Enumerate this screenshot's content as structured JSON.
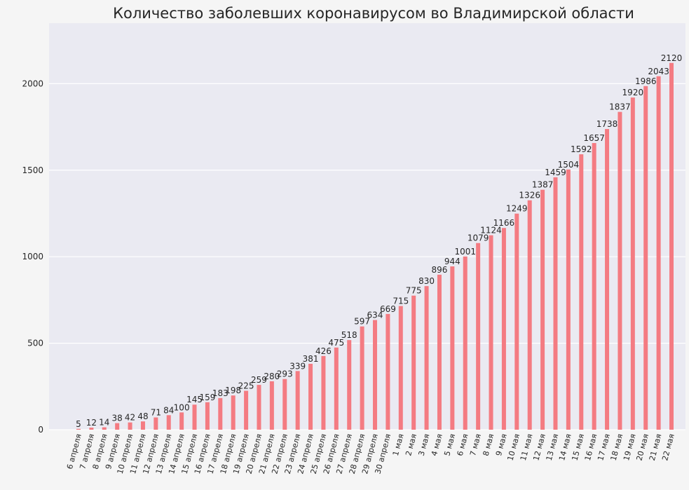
{
  "colors": {
    "background": "#f5f5f5",
    "plot_area": "#eaeaf2",
    "grid": "#ffffff",
    "bar": "#f47b82",
    "text": "#262626"
  },
  "chart_data": {
    "type": "bar",
    "title": "Количество заболевших коронавирусом во Владимирской области",
    "xlabel": "",
    "ylabel": "",
    "ylim": [
      0,
      2350
    ],
    "yticks": [
      0,
      500,
      1000,
      1500,
      2000
    ],
    "grid": true,
    "legend": "none",
    "categories": [
      "6 апреля",
      "7 апреля",
      "8 апреля",
      "9 апреля",
      "10 апреля",
      "11 апреля",
      "12 апреля",
      "13 апреля",
      "14 апреля",
      "15 апреля",
      "16 апреля",
      "17 апреля",
      "18 апреля",
      "19 апреля",
      "20 апреля",
      "21 апреля",
      "22 апреля",
      "23 апреля",
      "24 апреля",
      "25 апреля",
      "26 апреля",
      "27 апреля",
      "28 апреля",
      "29 апреля",
      "30 апреля",
      "1 мая",
      "2 мая",
      "3 мая",
      "4 мая",
      "5 мая",
      "6 мая",
      "7 мая",
      "8 мая",
      "9 мая",
      "10 мая",
      "11 мая",
      "12 мая",
      "13 мая",
      "14 мая",
      "15 мая",
      "16 мая",
      "17 мая",
      "18 мая",
      "19 мая",
      "20 мая",
      "21 мая",
      "22 мая"
    ],
    "values": [
      5,
      12,
      14,
      38,
      42,
      48,
      71,
      84,
      100,
      145,
      159,
      183,
      198,
      225,
      259,
      280,
      293,
      339,
      381,
      426,
      475,
      518,
      597,
      634,
      669,
      715,
      775,
      830,
      896,
      944,
      1001,
      1079,
      1124,
      1166,
      1249,
      1326,
      1387,
      1459,
      1504,
      1592,
      1657,
      1738,
      1837,
      1920,
      1986,
      2043,
      2120
    ]
  }
}
